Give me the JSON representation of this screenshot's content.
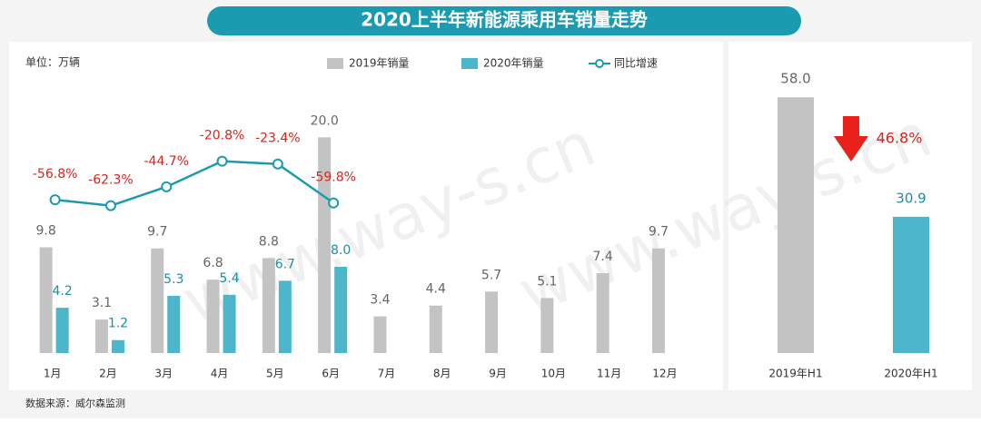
{
  "title": "2020上半年新能源乘用车销量走势",
  "unit": "单位：万辆",
  "source": "数据来源：威尔森监测",
  "watermark": "www.way-s.cn",
  "chart_data": [
    {
      "type": "bar",
      "categories": [
        "1月",
        "2月",
        "3月",
        "4月",
        "5月",
        "6月",
        "7月",
        "8月",
        "9月",
        "10月",
        "11月",
        "12月"
      ],
      "series": [
        {
          "name": "2019年销量",
          "color": "#c3c3c3",
          "values": [
            9.8,
            3.1,
            9.7,
            6.8,
            8.8,
            20.0,
            3.4,
            4.4,
            5.7,
            5.1,
            7.4,
            9.7
          ],
          "value_labels": [
            "9.8",
            "3.1",
            "9.7",
            "6.8",
            "8.8",
            "20.0",
            "3.4",
            "4.4",
            "5.7",
            "5.1",
            "7.4",
            "9.7"
          ]
        },
        {
          "name": "2020年销量",
          "color": "#4db6cb",
          "values": [
            4.2,
            1.2,
            5.3,
            5.4,
            6.7,
            8.0,
            null,
            null,
            null,
            null,
            null,
            null
          ],
          "value_labels": [
            "4.2",
            "1.2",
            "5.3",
            "5.4",
            "6.7",
            "8.0",
            null,
            null,
            null,
            null,
            null,
            null
          ]
        },
        {
          "name": "同比增速",
          "color": "#1a9bb0",
          "axis": "y2",
          "type": "line",
          "values": [
            -56.8,
            -62.3,
            -44.7,
            -20.8,
            -23.4,
            -59.8,
            null,
            null,
            null,
            null,
            null,
            null
          ],
          "value_labels": [
            "-56.8%",
            "-62.3%",
            "-44.7%",
            "-20.8%",
            "-23.4%",
            "-59.8%",
            null,
            null,
            null,
            null,
            null,
            null
          ]
        }
      ],
      "ylim": [
        0,
        26
      ],
      "y2lim": [
        -200,
        62
      ],
      "legend": "top"
    },
    {
      "type": "bar",
      "categories": [
        "2019年H1",
        "2020年H1"
      ],
      "values": [
        58.0,
        30.9
      ],
      "value_labels": [
        "58.0",
        "30.9"
      ],
      "colors": [
        "#c3c3c3",
        "#4db6cb"
      ],
      "ylim": [
        0,
        63.6
      ],
      "annotation": "46.8%"
    }
  ]
}
